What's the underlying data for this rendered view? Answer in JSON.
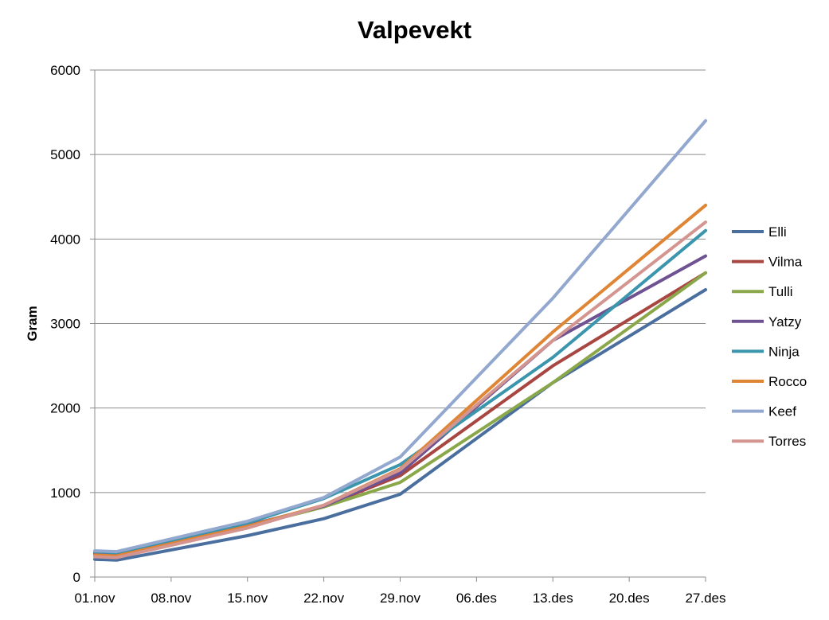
{
  "chart_data": {
    "type": "line",
    "title": "Valpevekt",
    "xlabel": "",
    "ylabel": "Gram",
    "ylim": [
      0,
      6000
    ],
    "yticks": [
      0,
      1000,
      2000,
      3000,
      4000,
      5000,
      6000
    ],
    "xlim": [
      0,
      56
    ],
    "xticks": [
      {
        "label": "01.nov",
        "x": 0
      },
      {
        "label": "08.nov",
        "x": 7
      },
      {
        "label": "15.nov",
        "x": 14
      },
      {
        "label": "22.nov",
        "x": 21
      },
      {
        "label": "29.nov",
        "x": 28
      },
      {
        "label": "06.des",
        "x": 35
      },
      {
        "label": "13.des",
        "x": 42
      },
      {
        "label": "20.des",
        "x": 49
      },
      {
        "label": "27.des",
        "x": 56
      }
    ],
    "x": [
      0,
      2,
      14,
      21,
      28,
      42,
      56
    ],
    "grid": "horizontal",
    "legend_position": "right",
    "series": [
      {
        "name": "Elli",
        "color": "#4a6f9f",
        "values": [
          210,
          200,
          490,
          690,
          980,
          2300,
          3400
        ]
      },
      {
        "name": "Vilma",
        "color": "#a84642",
        "values": [
          270,
          260,
          600,
          840,
          1200,
          2500,
          3600
        ]
      },
      {
        "name": "Tulli",
        "color": "#8aa84a",
        "values": [
          270,
          260,
          600,
          830,
          1120,
          2300,
          3600
        ]
      },
      {
        "name": "Yatzy",
        "color": "#6e5292",
        "values": [
          280,
          270,
          610,
          840,
          1230,
          2800,
          3800
        ]
      },
      {
        "name": "Ninja",
        "color": "#3b96ad",
        "values": [
          300,
          290,
          640,
          930,
          1330,
          2600,
          4100
        ]
      },
      {
        "name": "Rocco",
        "color": "#de8636",
        "values": [
          260,
          250,
          600,
          850,
          1280,
          2900,
          4400
        ]
      },
      {
        "name": "Keef",
        "color": "#93a8cf",
        "values": [
          310,
          300,
          660,
          940,
          1420,
          3300,
          5400
        ]
      },
      {
        "name": "Torres",
        "color": "#d49590",
        "values": [
          240,
          230,
          580,
          850,
          1270,
          2800,
          4200
        ]
      }
    ]
  }
}
